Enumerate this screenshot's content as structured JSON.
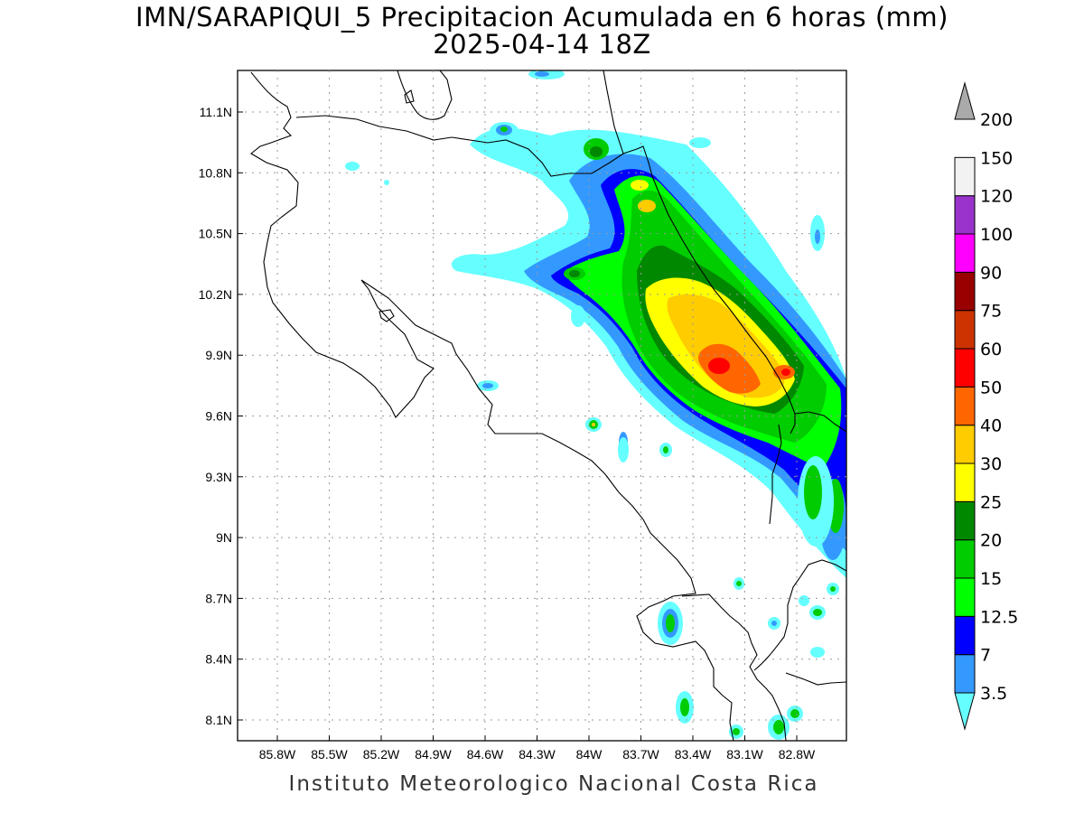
{
  "title_line1": "IMN/SARAPIQUI_5 Precipitacion Acumulada en 6 horas (mm)",
  "title_line2": "2025-04-14 18Z",
  "footer": "Instituto Meteorologico Nacional Costa Rica",
  "map": {
    "lon_ticks": [
      "85.8W",
      "85.5W",
      "85.2W",
      "84.9W",
      "84.6W",
      "84.3W",
      "84W",
      "83.7W",
      "83.4W",
      "83.1W",
      "82.8W"
    ],
    "lat_ticks": [
      "11.1N",
      "10.8N",
      "10.5N",
      "10.2N",
      "9.9N",
      "9.6N",
      "9.3N",
      "9N",
      "8.7N",
      "8.4N",
      "8.1N"
    ],
    "lon_values": [
      -85.8,
      -85.5,
      -85.2,
      -84.9,
      -84.6,
      -84.3,
      -84.0,
      -83.7,
      -83.4,
      -83.1,
      -82.8
    ],
    "lat_values": [
      11.1,
      10.8,
      10.5,
      10.2,
      9.9,
      9.6,
      9.3,
      9.0,
      8.7,
      8.4,
      8.1
    ],
    "gridlines": true
  },
  "colorbar": {
    "labels": [
      "3.5",
      "7",
      "12.5",
      "15",
      "20",
      "25",
      "30",
      "40",
      "50",
      "60",
      "75",
      "90",
      "100",
      "120",
      "150",
      "200"
    ],
    "colors": [
      "#66ffff",
      "#3399ff",
      "#0000ff",
      "#00ff00",
      "#00cc00",
      "#008800",
      "#ffff00",
      "#ffcc00",
      "#ff6600",
      "#ff0000",
      "#cc3300",
      "#990000",
      "#ff00ff",
      "#9933cc",
      "#f2f2f2",
      "#aaaaaa"
    ]
  }
}
